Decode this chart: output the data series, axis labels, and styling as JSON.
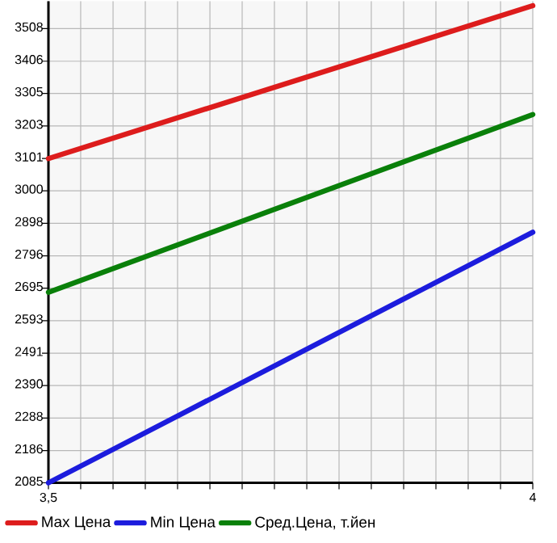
{
  "chart_data": {
    "type": "line",
    "x": [
      3.5,
      4
    ],
    "series": [
      {
        "name": "Max Цена",
        "color": "#dd1c1c",
        "values": [
          3101,
          3580
        ]
      },
      {
        "name": "Min Цена",
        "color": "#1c1cdd",
        "values": [
          2085,
          2870
        ]
      },
      {
        "name": "Сред.Цена, т.йен",
        "color": "#0a800a",
        "values": [
          2682,
          3239
        ]
      }
    ],
    "xlim": [
      3.5,
      4
    ],
    "xticks": [
      {
        "value": 3.5,
        "label": "3,5"
      },
      {
        "value": 3.5333,
        "label": null
      },
      {
        "value": 3.5667,
        "label": null
      },
      {
        "value": 3.6,
        "label": null
      },
      {
        "value": 3.6333,
        "label": null
      },
      {
        "value": 3.6667,
        "label": null
      },
      {
        "value": 3.7,
        "label": null
      },
      {
        "value": 3.7333,
        "label": null
      },
      {
        "value": 3.7667,
        "label": null
      },
      {
        "value": 3.8,
        "label": null
      },
      {
        "value": 3.8333,
        "label": null
      },
      {
        "value": 3.8667,
        "label": null
      },
      {
        "value": 3.9,
        "label": null
      },
      {
        "value": 3.9333,
        "label": null
      },
      {
        "value": 3.9667,
        "label": null
      },
      {
        "value": 4,
        "label": "4"
      }
    ],
    "ylim": [
      2085,
      3594
    ],
    "yticks": [
      2085,
      2186,
      2288,
      2390,
      2491,
      2593,
      2695,
      2796,
      2898,
      3000,
      3101,
      3203,
      3305,
      3406,
      3508
    ],
    "grid": true,
    "legend": "bottom"
  }
}
